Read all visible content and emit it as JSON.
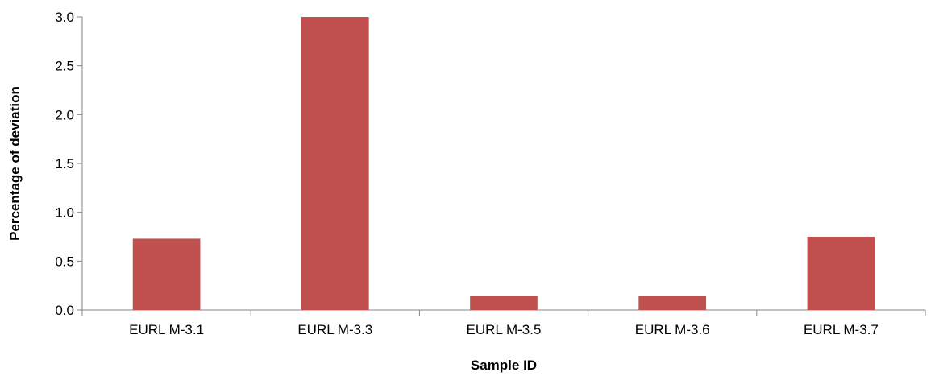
{
  "chart_data": {
    "type": "bar",
    "categories": [
      "EURL M-3.1",
      "EURL M-3.3",
      "EURL M-3.5",
      "EURL M-3.6",
      "EURL M-3.7"
    ],
    "series": [
      {
        "values": [
          0.73,
          3.0,
          0.14,
          0.14,
          0.75
        ]
      }
    ],
    "xlabel": "Sample ID",
    "ylabel": "Percentage of deviation",
    "ylim": [
      0,
      3.0
    ],
    "yticks": [
      "0.0",
      "0.5",
      "1.0",
      "1.5",
      "2.0",
      "2.5",
      "3.0"
    ],
    "grid": false,
    "legend": "none",
    "bar_color": "#c0504d",
    "axis_color": "#868686"
  }
}
